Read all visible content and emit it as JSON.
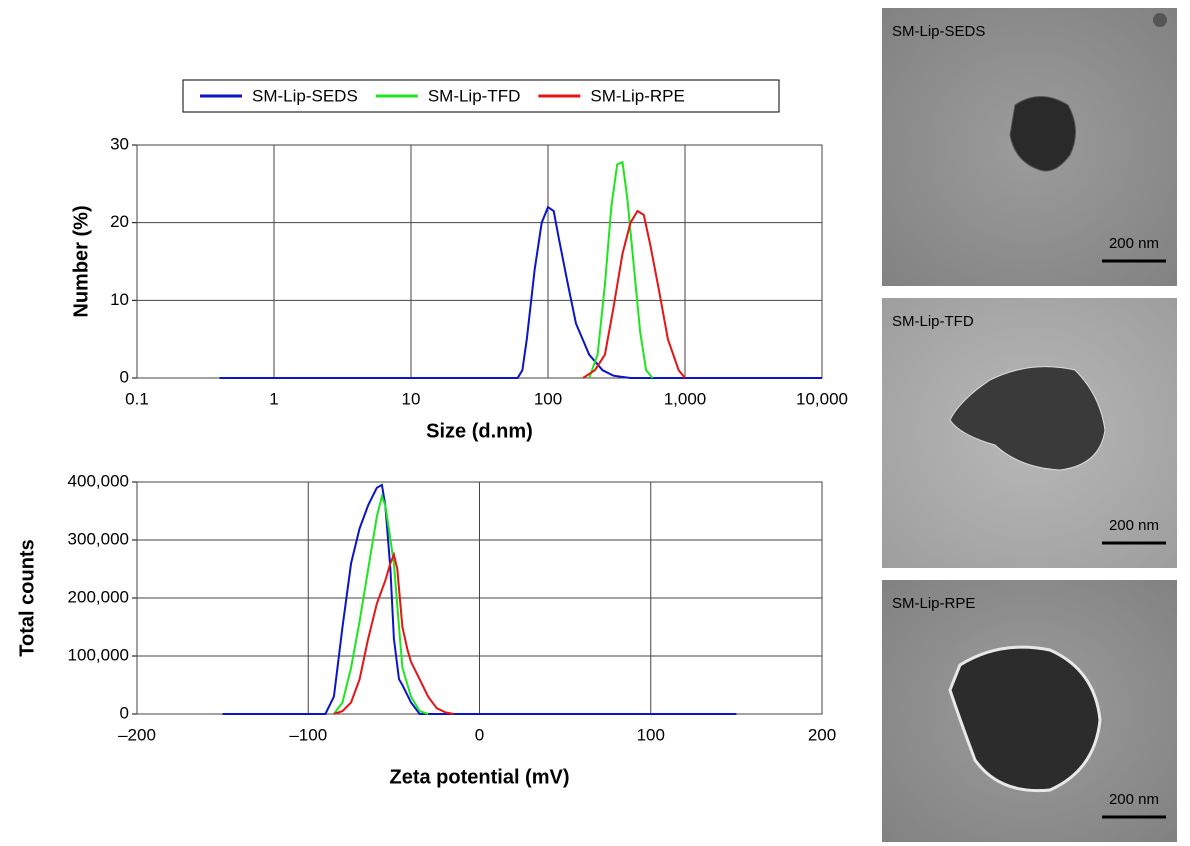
{
  "chart_data": [
    {
      "type": "line",
      "xscale": "log",
      "grid": true,
      "x_label": "Size (d.nm)",
      "y_label": "Number (%)",
      "xlim": [
        0.1,
        10000
      ],
      "xticks": [
        0.1,
        1,
        10,
        100,
        {
          "value": 1000,
          "label": "1,000"
        },
        {
          "value": 10000,
          "label": "10,000"
        }
      ],
      "ylim": [
        0,
        30
      ],
      "yticks": [
        0,
        10,
        20,
        30
      ],
      "series": [
        {
          "name": "SM-Lip-SEDS",
          "color": "#0a14c8",
          "x": [
            0.4,
            60,
            65,
            70,
            80,
            90,
            100,
            110,
            120,
            140,
            160,
            200,
            250,
            300,
            400,
            10000
          ],
          "values": [
            0,
            0,
            1,
            5,
            14,
            20,
            22,
            21.5,
            18,
            12,
            7,
            3,
            1,
            0.3,
            0,
            0
          ]
        },
        {
          "name": "SM-Lip-TFD",
          "color": "#1ee61e",
          "x": [
            200,
            230,
            260,
            290,
            320,
            350,
            380,
            420,
            470,
            520,
            580
          ],
          "values": [
            0,
            3,
            12,
            22,
            27.5,
            27.8,
            23,
            15,
            6,
            1,
            0
          ]
        },
        {
          "name": "SM-Lip-RPE",
          "color": "#e61414",
          "x": [
            180,
            220,
            260,
            300,
            350,
            400,
            450,
            500,
            560,
            650,
            750,
            900,
            1000
          ],
          "values": [
            0,
            1,
            3,
            9,
            16,
            20,
            21.5,
            21,
            17,
            11,
            5,
            1,
            0
          ]
        }
      ]
    },
    {
      "type": "line",
      "grid": true,
      "x_label": "Zeta potential (mV)",
      "y_label": "Total counts",
      "xlim": [
        -200,
        200
      ],
      "xticks": [
        {
          "value": -200,
          "label": "–200"
        },
        {
          "value": -100,
          "label": "–100"
        },
        0,
        100,
        200
      ],
      "ylim": [
        0,
        400000
      ],
      "yticks": [
        0,
        {
          "value": 100000,
          "label": "100,000"
        },
        {
          "value": 200000,
          "label": "200,000"
        },
        {
          "value": 300000,
          "label": "300,000"
        },
        {
          "value": 400000,
          "label": "400,000"
        }
      ],
      "series": [
        {
          "color": "#0a14c8",
          "x": [
            -150,
            -90,
            -85,
            -80,
            -75,
            -70,
            -65,
            -60,
            -57,
            -55,
            -52,
            -50,
            -47,
            -45,
            -40,
            -35,
            -30,
            150
          ],
          "values": [
            0,
            0,
            30000,
            150000,
            260000,
            320000,
            360000,
            390000,
            395000,
            360000,
            250000,
            130000,
            60000,
            50000,
            20000,
            0,
            0,
            0
          ]
        },
        {
          "color": "#1ee61e",
          "x": [
            -85,
            -80,
            -75,
            -70,
            -65,
            -60,
            -57,
            -55,
            -50,
            -47,
            -45,
            -40,
            -35,
            -30
          ],
          "values": [
            0,
            20000,
            80000,
            160000,
            250000,
            340000,
            375000,
            360000,
            260000,
            150000,
            80000,
            30000,
            5000,
            0
          ]
        },
        {
          "color": "#e61414",
          "x": [
            -85,
            -80,
            -75,
            -70,
            -65,
            -60,
            -55,
            -52,
            -50,
            -48,
            -45,
            -42,
            -40,
            -35,
            -30,
            -25,
            -20,
            -15
          ],
          "values": [
            0,
            5000,
            20000,
            60000,
            130000,
            190000,
            230000,
            260000,
            275000,
            250000,
            150000,
            110000,
            90000,
            60000,
            30000,
            10000,
            3000,
            0
          ]
        }
      ]
    }
  ],
  "images": [
    {
      "label": "SM-Lip-SEDS",
      "scale_bar": "200 nm"
    },
    {
      "label": "SM-Lip-TFD",
      "scale_bar": "200 nm"
    },
    {
      "label": "SM-Lip-RPE",
      "scale_bar": "200 nm"
    }
  ]
}
